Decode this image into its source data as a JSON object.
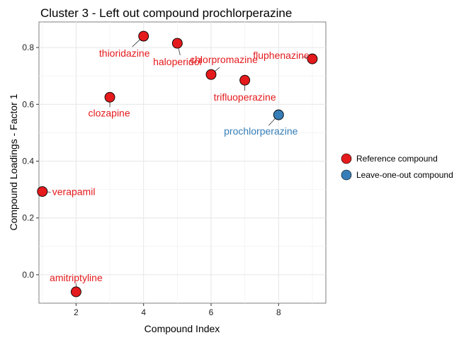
{
  "chart_data": {
    "type": "scatter",
    "title": "Cluster 3 - Left out compound prochlorperazine",
    "xlabel": "Compound Index",
    "ylabel": "Compound Loadings - Factor 1",
    "xlim": [
      0.9,
      9.4
    ],
    "ylim": [
      -0.1,
      0.89
    ],
    "x_ticks": [
      2,
      4,
      6,
      8
    ],
    "y_ticks": [
      0.0,
      0.2,
      0.4,
      0.6,
      0.8
    ],
    "x_tick_labels": [
      "2",
      "4",
      "6",
      "8"
    ],
    "y_tick_labels": [
      "0.0",
      "0.2",
      "0.4",
      "0.6",
      "0.8"
    ],
    "grid": true,
    "legend_placement": "right",
    "series": [
      {
        "name": "Reference compound",
        "color": "#e41a1c",
        "points": [
          {
            "x": 1,
            "y": 0.293,
            "label": "verapamil"
          },
          {
            "x": 2,
            "y": -0.06,
            "label": "amitriptyline"
          },
          {
            "x": 3,
            "y": 0.625,
            "label": "clozapine"
          },
          {
            "x": 4,
            "y": 0.84,
            "label": "thioridazine"
          },
          {
            "x": 5,
            "y": 0.815,
            "label": "haloperidol"
          },
          {
            "x": 6,
            "y": 0.705,
            "label": "chlorpromazine"
          },
          {
            "x": 7,
            "y": 0.685,
            "label": "trifluoperazine"
          },
          {
            "x": 9,
            "y": 0.76,
            "label": "fluphenazine"
          }
        ]
      },
      {
        "name": "Leave-one-out compound",
        "color": "#377eb8",
        "points": [
          {
            "x": 8,
            "y": 0.563,
            "label": "prochlorperazine"
          }
        ]
      }
    ]
  }
}
